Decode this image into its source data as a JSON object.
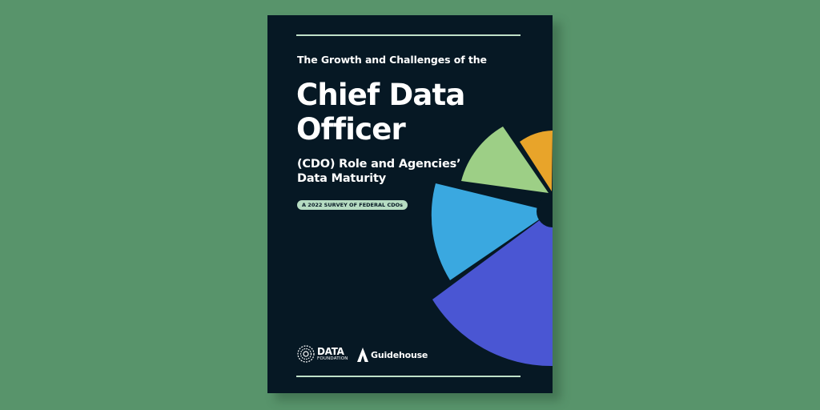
{
  "cover": {
    "eyebrow": "The Growth and Challenges of the",
    "title_line1": "Chief Data",
    "title_line2": "Officer",
    "subtitle_line1": "(CDO) Role and Agencies’",
    "subtitle_line2": "Data Maturity",
    "badge": "A 2022 SURVEY OF FEDERAL CDOs"
  },
  "logos": {
    "data_foundation_word": "DATA",
    "data_foundation_sub": "FOUNDATION",
    "guidehouse": "Guidehouse"
  },
  "colors": {
    "background": "#58946b",
    "cover": "#061824",
    "accent_line": "#bfe0c8",
    "slice_purple": "#4a56d3",
    "slice_blue": "#3aa8e0",
    "slice_green": "#9dcf86",
    "slice_orange": "#e8a42a"
  },
  "icons": [
    "data-foundation-logo-icon",
    "guidehouse-logo-icon"
  ]
}
